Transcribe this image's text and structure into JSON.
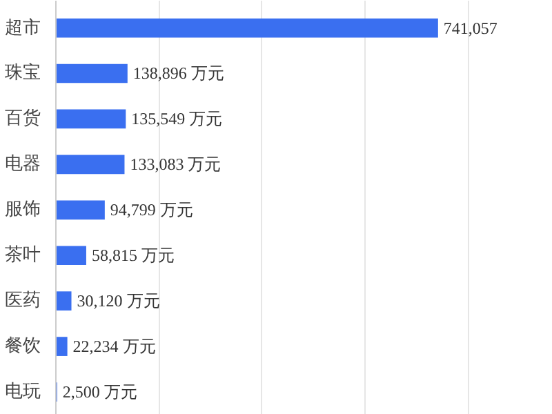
{
  "chart_data": {
    "type": "bar",
    "orientation": "horizontal",
    "categories": [
      "超市",
      "珠宝",
      "百货",
      "电器",
      "服饰",
      "茶叶",
      "医药",
      "餐饮",
      "电玩"
    ],
    "values": [
      741057,
      138896,
      135549,
      133083,
      94799,
      58815,
      30120,
      22234,
      2500
    ],
    "value_labels": [
      "741,057",
      "138,896 万元",
      "135,549 万元",
      "133,083 万元",
      "94,799 万元",
      "58,815 万元",
      "30,120 万元",
      "22,234 万元",
      "2,500 万元"
    ],
    "color": "#3a6ff0",
    "grid": "x"
  }
}
